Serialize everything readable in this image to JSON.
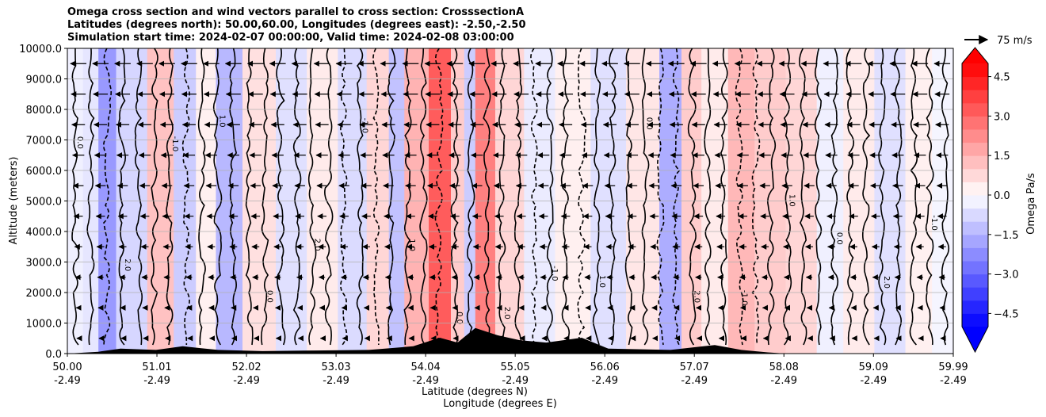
{
  "title_lines": [
    "Omega cross section and wind vectors parallel to cross section: CrosssectionA",
    "Latitudes (degrees north): 50.00,60.00, Longitudes (degrees east): -2.50,-2.50",
    "Simulation start time: 2024-02-07 00:00:00, Valid time: 2024-02-08 03:00:00"
  ],
  "chart_data": {
    "type": "heatmap",
    "title": "Omega cross section and wind vectors parallel to cross section: CrosssectionA",
    "ylabel": "Altitude (meters)",
    "xlabel_lines": [
      "Latitude (degrees N)",
      "Longitude (degrees E)"
    ],
    "ylim": [
      0,
      10000
    ],
    "y_ticks": [
      "0.0",
      "1000.0",
      "2000.0",
      "3000.0",
      "4000.0",
      "5000.0",
      "6000.0",
      "7000.0",
      "8000.0",
      "9000.0",
      "10000.0"
    ],
    "y_tick_values": [
      0,
      1000,
      2000,
      3000,
      4000,
      5000,
      6000,
      7000,
      8000,
      9000,
      10000
    ],
    "x_ticks_lat": [
      "50.00",
      "51.01",
      "52.02",
      "53.03",
      "54.04",
      "55.05",
      "56.06",
      "57.07",
      "58.08",
      "59.09",
      "59.99"
    ],
    "x_ticks_lon": [
      "-2.49",
      "-2.49",
      "-2.49",
      "-2.49",
      "-2.49",
      "-2.49",
      "-2.49",
      "-2.49",
      "-2.49",
      "-2.49",
      "-2.49"
    ],
    "x_tick_values": [
      50.0,
      51.01,
      52.02,
      53.03,
      54.04,
      55.05,
      56.06,
      57.07,
      58.08,
      59.09,
      59.99
    ],
    "xlim": [
      50.0,
      59.99
    ],
    "grid": "horizontal",
    "colorbar": {
      "label": "Omega Pa/s",
      "ticks": [
        "4.5",
        "3.0",
        "1.5",
        "0.0",
        "−1.5",
        "−3.0",
        "−4.5"
      ],
      "tick_values": [
        4.5,
        3.0,
        1.5,
        0.0,
        -1.5,
        -3.0,
        -4.5
      ],
      "range": [
        -5,
        5
      ],
      "extend": "both",
      "colormap": "bwr",
      "min_color": "#0000ff",
      "mid_color": "#ffffff",
      "max_color": "#ff0000"
    },
    "wind_key": {
      "label": "75 m/s",
      "value": 75,
      "unit": "m/s"
    },
    "contour_labels": [
      "0.0",
      "1.0",
      "-1.0",
      "2.0"
    ],
    "omega_columns": [
      {
        "lat": 50.05,
        "value": -0.3
      },
      {
        "lat": 50.3,
        "value": -0.5
      },
      {
        "lat": 50.4,
        "value": -2.0
      },
      {
        "lat": 50.7,
        "value": -0.8
      },
      {
        "lat": 51.1,
        "value": 1.2
      },
      {
        "lat": 51.3,
        "value": -1.0
      },
      {
        "lat": 51.6,
        "value": 0.3
      },
      {
        "lat": 51.75,
        "value": -1.4
      },
      {
        "lat": 52.2,
        "value": 0.6
      },
      {
        "lat": 52.5,
        "value": -0.6
      },
      {
        "lat": 52.9,
        "value": 0.4
      },
      {
        "lat": 53.2,
        "value": -0.7
      },
      {
        "lat": 53.55,
        "value": 0.8
      },
      {
        "lat": 53.7,
        "value": -1.2
      },
      {
        "lat": 53.9,
        "value": 1.5
      },
      {
        "lat": 54.25,
        "value": 3.2
      },
      {
        "lat": 54.4,
        "value": 1.0
      },
      {
        "lat": 54.55,
        "value": -1.0
      },
      {
        "lat": 54.65,
        "value": 2.5
      },
      {
        "lat": 55.0,
        "value": 0.8
      },
      {
        "lat": 55.3,
        "value": -0.4
      },
      {
        "lat": 55.7,
        "value": 0.3
      },
      {
        "lat": 56.1,
        "value": -0.6
      },
      {
        "lat": 56.5,
        "value": 0.5
      },
      {
        "lat": 56.85,
        "value": -1.6
      },
      {
        "lat": 57.0,
        "value": 1.0
      },
      {
        "lat": 57.3,
        "value": 0.4
      },
      {
        "lat": 57.6,
        "value": 1.4
      },
      {
        "lat": 57.9,
        "value": 1.0
      },
      {
        "lat": 58.3,
        "value": 0.8
      },
      {
        "lat": 58.6,
        "value": -0.3
      },
      {
        "lat": 58.9,
        "value": 0.4
      },
      {
        "lat": 59.3,
        "value": -0.6
      },
      {
        "lat": 59.6,
        "value": 0.3
      },
      {
        "lat": 59.9,
        "value": -0.2
      }
    ],
    "terrain": [
      {
        "lat": 50.0,
        "alt": 0
      },
      {
        "lat": 50.35,
        "alt": 30
      },
      {
        "lat": 50.6,
        "alt": 80
      },
      {
        "lat": 51.0,
        "alt": 60
      },
      {
        "lat": 51.3,
        "alt": 120
      },
      {
        "lat": 51.7,
        "alt": 60
      },
      {
        "lat": 52.2,
        "alt": 40
      },
      {
        "lat": 52.8,
        "alt": 50
      },
      {
        "lat": 53.4,
        "alt": 60
      },
      {
        "lat": 53.9,
        "alt": 120
      },
      {
        "lat": 54.2,
        "alt": 260
      },
      {
        "lat": 54.4,
        "alt": 180
      },
      {
        "lat": 54.6,
        "alt": 420
      },
      {
        "lat": 54.85,
        "alt": 300
      },
      {
        "lat": 55.1,
        "alt": 220
      },
      {
        "lat": 55.4,
        "alt": 180
      },
      {
        "lat": 55.8,
        "alt": 260
      },
      {
        "lat": 56.1,
        "alt": 80
      },
      {
        "lat": 56.8,
        "alt": 60
      },
      {
        "lat": 57.3,
        "alt": 140
      },
      {
        "lat": 57.6,
        "alt": 60
      },
      {
        "lat": 57.9,
        "alt": 20
      },
      {
        "lat": 58.1,
        "alt": 0
      },
      {
        "lat": 59.99,
        "alt": 0
      }
    ]
  }
}
